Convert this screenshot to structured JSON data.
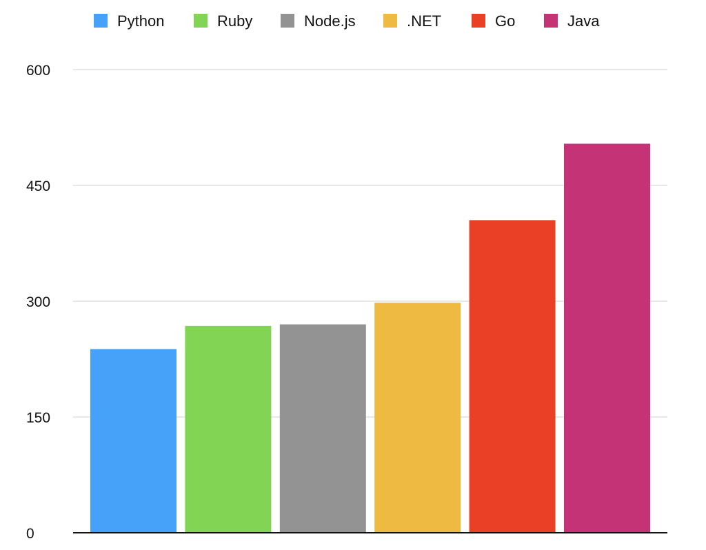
{
  "chart_data": {
    "type": "bar",
    "title": "",
    "xlabel": "",
    "ylabel": "",
    "categories": [
      "Python",
      "Ruby",
      "Node.js",
      ".NET",
      "Go",
      "Java"
    ],
    "values": [
      238,
      268,
      270,
      298,
      405,
      504
    ],
    "colors": [
      "#45a2f8",
      "#82d454",
      "#939393",
      "#eeba42",
      "#ea4026",
      "#c43376"
    ],
    "ylim": [
      0,
      600
    ],
    "yticks": [
      0,
      150,
      300,
      450,
      600
    ],
    "ytick_labels": [
      "0",
      "150",
      "300",
      "450",
      "600"
    ],
    "grid": true,
    "legend": {
      "placement": "top-center",
      "entries": [
        "Python",
        "Ruby",
        "Node.js",
        ".NET",
        "Go",
        "Java"
      ]
    }
  }
}
